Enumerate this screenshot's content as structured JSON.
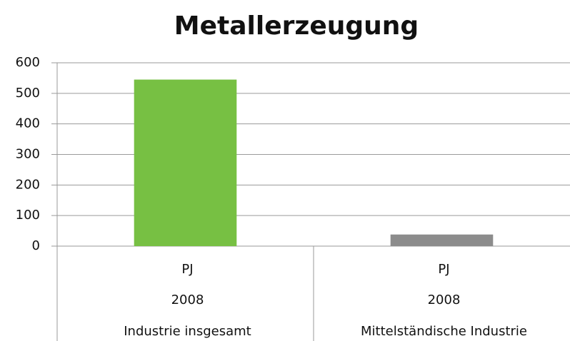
{
  "chart_data": {
    "type": "bar",
    "title": "Metallerzeugung",
    "categories": [
      [
        "PJ",
        "2008",
        "Industrie insgesamt"
      ],
      [
        "PJ",
        "2008",
        "Mittelständische Industrie"
      ]
    ],
    "values": [
      545,
      38
    ],
    "colors": [
      "#77c043",
      "#8c8c8c"
    ],
    "ylim": [
      0,
      600
    ],
    "yticks": [
      0,
      100,
      200,
      300,
      400,
      500,
      600
    ],
    "grid": true
  }
}
